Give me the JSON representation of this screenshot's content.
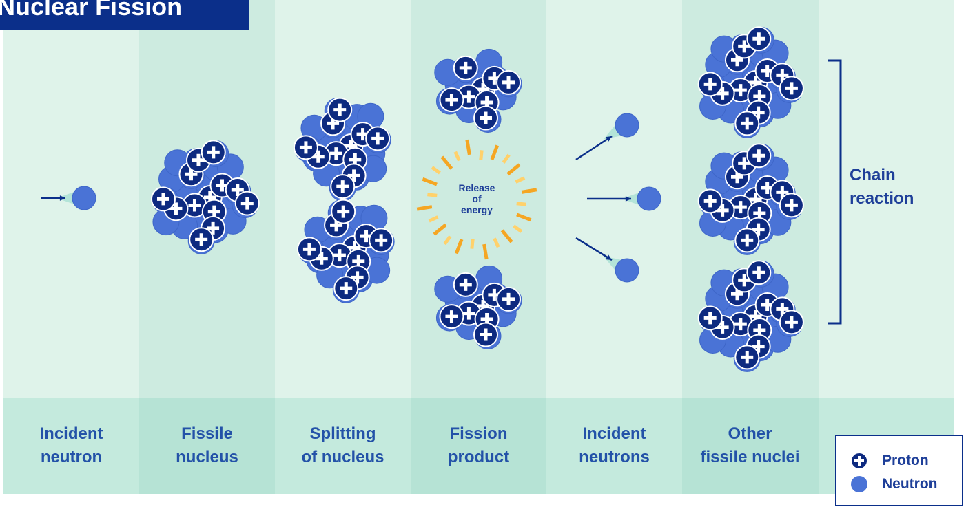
{
  "title": "Nuclear Fission",
  "columns": [
    "Incident\nneutron",
    "Fissile\nnucleus",
    "Splitting\nof nucleus",
    "Fission\nproduct",
    "Incident\nneutrons",
    "Other\nfissile nuclei"
  ],
  "energy_label": "Release\nof\nenergy",
  "chain_label": "Chain\nreaction",
  "legend": {
    "proton": "Proton",
    "neutron": "Neutron"
  }
}
